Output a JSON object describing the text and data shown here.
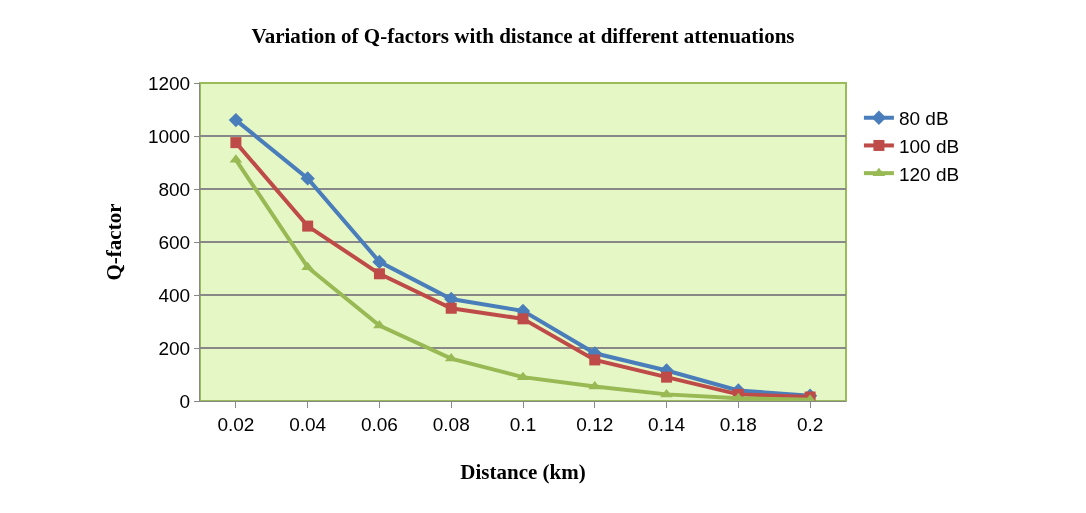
{
  "chart_data": {
    "type": "line",
    "title": "Variation of Q-factors with distance at different attenuations",
    "xlabel": "Distance (km)",
    "ylabel": "Q-factor",
    "categories": [
      "0.02",
      "0.04",
      "0.06",
      "0.08",
      "0.1",
      "0.12",
      "0.14",
      "0.18",
      "0.2"
    ],
    "series": [
      {
        "name": "80 dB",
        "color": "#4a7ebb",
        "marker": "diamond",
        "values": [
          1060,
          840,
          525,
          385,
          340,
          180,
          115,
          40,
          20
        ]
      },
      {
        "name": "100 dB",
        "color": "#be4b48",
        "marker": "square",
        "values": [
          975,
          660,
          480,
          350,
          310,
          155,
          90,
          25,
          15
        ]
      },
      {
        "name": "120 dB",
        "color": "#98b954",
        "marker": "triangle",
        "values": [
          910,
          505,
          285,
          160,
          90,
          55,
          25,
          10,
          5
        ]
      }
    ],
    "ylim": [
      0,
      1200
    ],
    "yticks": [
      0,
      200,
      400,
      600,
      800,
      1000,
      1200
    ],
    "grid": "y",
    "legend": "right",
    "line_style": "solid"
  }
}
